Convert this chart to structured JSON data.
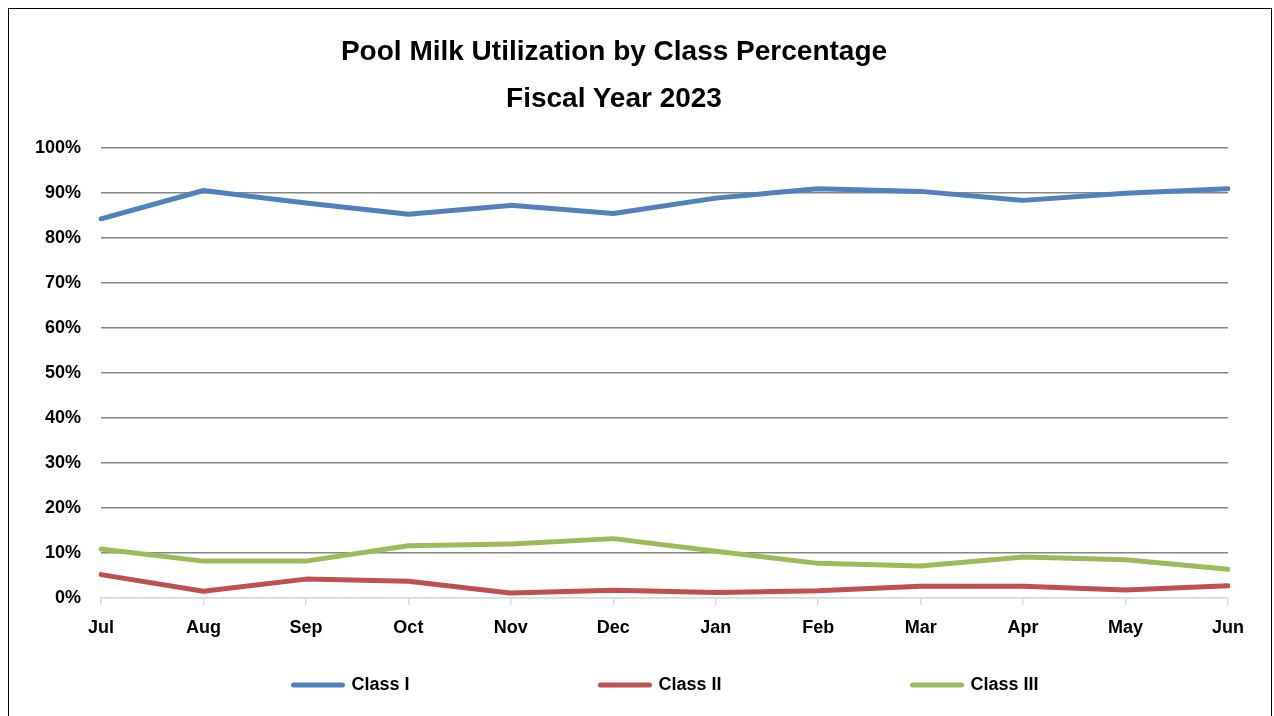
{
  "chart_data": {
    "type": "line",
    "title": "Pool Milk Utilization by Class Percentage",
    "subtitle": "Fiscal Year 2023",
    "categories": [
      "Jul",
      "Aug",
      "Sep",
      "Oct",
      "Nov",
      "Dec",
      "Jan",
      "Feb",
      "Mar",
      "Apr",
      "May",
      "Jun"
    ],
    "series": [
      {
        "name": "Class I",
        "color": "#4f81bd",
        "values": [
          84.3,
          90.6,
          87.8,
          85.3,
          87.3,
          85.5,
          88.9,
          91.0,
          90.4,
          88.4,
          90.0,
          91.0
        ]
      },
      {
        "name": "Class II",
        "color": "#c0504d",
        "values": [
          5.2,
          1.5,
          4.2,
          3.7,
          1.1,
          1.7,
          1.2,
          1.6,
          2.6,
          2.6,
          1.8,
          2.7
        ]
      },
      {
        "name": "Class III",
        "color": "#9bbb59",
        "values": [
          10.9,
          8.2,
          8.2,
          11.6,
          12.0,
          13.2,
          10.4,
          7.7,
          7.1,
          9.1,
          8.5,
          6.4
        ]
      }
    ],
    "ylim": [
      0,
      100
    ],
    "yticks": [
      {
        "value": 0,
        "label": "0%"
      },
      {
        "value": 10,
        "label": "10%"
      },
      {
        "value": 20,
        "label": "20%"
      },
      {
        "value": 30,
        "label": "30%"
      },
      {
        "value": 40,
        "label": "40%"
      },
      {
        "value": 50,
        "label": "50%"
      },
      {
        "value": 60,
        "label": "60%"
      },
      {
        "value": 70,
        "label": "70%"
      },
      {
        "value": 80,
        "label": "80%"
      },
      {
        "value": 90,
        "label": "90%"
      },
      {
        "value": 100,
        "label": "100%"
      }
    ],
    "grid": "y",
    "legend": "bottom"
  }
}
